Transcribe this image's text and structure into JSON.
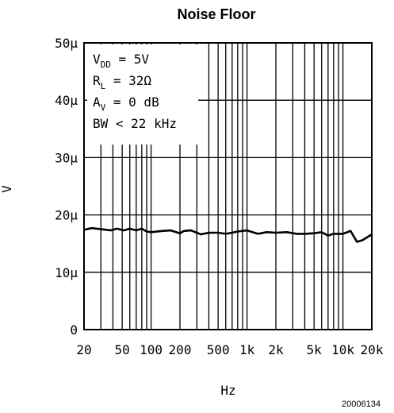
{
  "chart_data": {
    "type": "line",
    "title": "Noise Floor",
    "xlabel": "Hz",
    "ylabel": "V",
    "x_scale": "log",
    "xlim": [
      20,
      20000
    ],
    "ylim": [
      0,
      50
    ],
    "x_ticks": [
      20,
      50,
      100,
      200,
      500,
      1000,
      2000,
      5000,
      10000,
      20000
    ],
    "x_tick_labels": [
      "20",
      "50",
      "100",
      "200",
      "500",
      "1k",
      "2k",
      "5k",
      "10k",
      "20k"
    ],
    "y_ticks": [
      0,
      10,
      20,
      30,
      40,
      50
    ],
    "y_tick_labels": [
      "0",
      "10μ",
      "20μ",
      "30μ",
      "40μ",
      "50μ"
    ],
    "grid": true,
    "series": [
      {
        "x": [
          20,
          24,
          30,
          38,
          44,
          52,
          60,
          70,
          80,
          90,
          100,
          130,
          160,
          200,
          220,
          260,
          330,
          400,
          500,
          600,
          700,
          800,
          1000,
          1300,
          1600,
          2000,
          2600,
          3300,
          4000,
          5000,
          6000,
          7000,
          8000,
          10000,
          12000,
          14000,
          16000,
          20000
        ],
        "y": [
          17.4,
          17.7,
          17.5,
          17.3,
          17.6,
          17.3,
          17.6,
          17.3,
          17.6,
          17.1,
          17.0,
          17.2,
          17.3,
          16.8,
          17.2,
          17.3,
          16.6,
          16.9,
          16.9,
          16.7,
          16.9,
          17.1,
          17.3,
          16.7,
          17.0,
          16.9,
          17.0,
          16.7,
          16.7,
          16.8,
          17.0,
          16.4,
          16.7,
          16.7,
          17.2,
          15.3,
          15.6,
          16.6
        ]
      }
    ],
    "annotations": [
      {
        "main": "V",
        "sub": "DD",
        "rest": " = 5V"
      },
      {
        "main": "R",
        "sub": "L",
        "rest": " = 32Ω"
      },
      {
        "main": "A",
        "sub": "V",
        "rest": " = 0 dB"
      },
      {
        "main": "BW",
        "sub": "",
        "rest": " < 22 kHz"
      }
    ]
  },
  "figure_number": "20006134"
}
